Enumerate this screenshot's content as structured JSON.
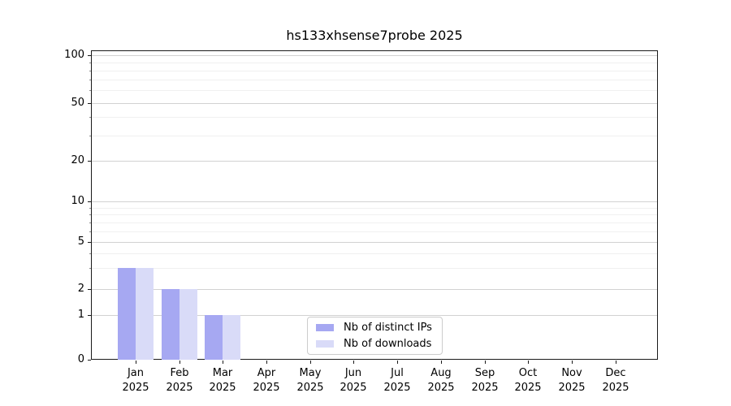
{
  "chart_data": {
    "type": "bar",
    "title": "hs133xhsense7probe 2025",
    "categories": [
      "Jan",
      "Feb",
      "Mar",
      "Apr",
      "May",
      "Jun",
      "Jul",
      "Aug",
      "Sep",
      "Oct",
      "Nov",
      "Dec"
    ],
    "x_sublabel": "2025",
    "series": [
      {
        "name": "Nb of distinct IPs",
        "color": "#a6a8f2",
        "values": [
          3,
          2,
          1,
          0,
          0,
          0,
          0,
          0,
          0,
          0,
          0,
          0
        ]
      },
      {
        "name": "Nb of downloads",
        "color": "#d9dbf8",
        "values": [
          3,
          2,
          1,
          0,
          0,
          0,
          0,
          0,
          0,
          0,
          0,
          0
        ]
      }
    ],
    "yscale": "symlog",
    "ylim": [
      0,
      110
    ],
    "yticks": [
      0,
      1,
      2,
      5,
      10,
      20,
      50,
      100
    ],
    "yminor_ticks": [
      3,
      4,
      6,
      7,
      8,
      9,
      30,
      40,
      60,
      70,
      80,
      90
    ],
    "grid": true,
    "legend_position": "bottom-center"
  }
}
